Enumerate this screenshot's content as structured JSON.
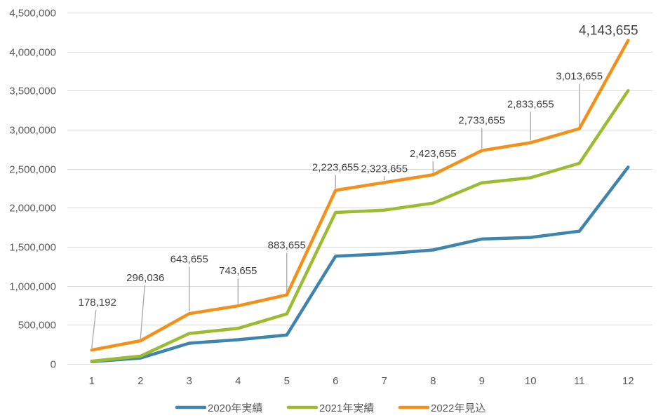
{
  "chart_data": {
    "type": "line",
    "x": [
      1,
      2,
      3,
      4,
      5,
      6,
      7,
      8,
      9,
      10,
      11,
      12
    ],
    "ylim": [
      0,
      4500000
    ],
    "yticks": [
      0,
      500000,
      1000000,
      1500000,
      2000000,
      2500000,
      3000000,
      3500000,
      4000000,
      4500000
    ],
    "ytick_labels": [
      "0",
      "500,000",
      "1,000,000",
      "1,500,000",
      "2,000,000",
      "2,500,000",
      "3,000,000",
      "3,500,000",
      "4,000,000",
      "4,500,000"
    ],
    "xtick_labels": [
      "1",
      "2",
      "3",
      "4",
      "5",
      "6",
      "7",
      "8",
      "9",
      "10",
      "11",
      "12"
    ],
    "grid": true,
    "legend_position": "bottom",
    "series": [
      {
        "name": "2020年実績",
        "color": "#3e84ad",
        "values": [
          30000,
          75000,
          265000,
          310000,
          370000,
          1380000,
          1410000,
          1460000,
          1600000,
          1620000,
          1700000,
          2520000
        ]
      },
      {
        "name": "2021年実績",
        "color": "#9bbb30",
        "values": [
          35000,
          100000,
          390000,
          455000,
          640000,
          1940000,
          1970000,
          2060000,
          2320000,
          2385000,
          2570000,
          3500000
        ]
      },
      {
        "name": "2022年見込",
        "color": "#f39019",
        "values": [
          178192,
          296036,
          643655,
          743655,
          883655,
          2223655,
          2323655,
          2423655,
          2733655,
          2833655,
          3013655,
          4143655
        ],
        "data_labels": [
          "178,192",
          "296,036",
          "643,655",
          "743,655",
          "883,655",
          "2,223,655",
          "2,323,655",
          "2,423,655",
          "2,733,655",
          "2,833,655",
          "3,013,655",
          "4,143,655"
        ]
      }
    ]
  }
}
